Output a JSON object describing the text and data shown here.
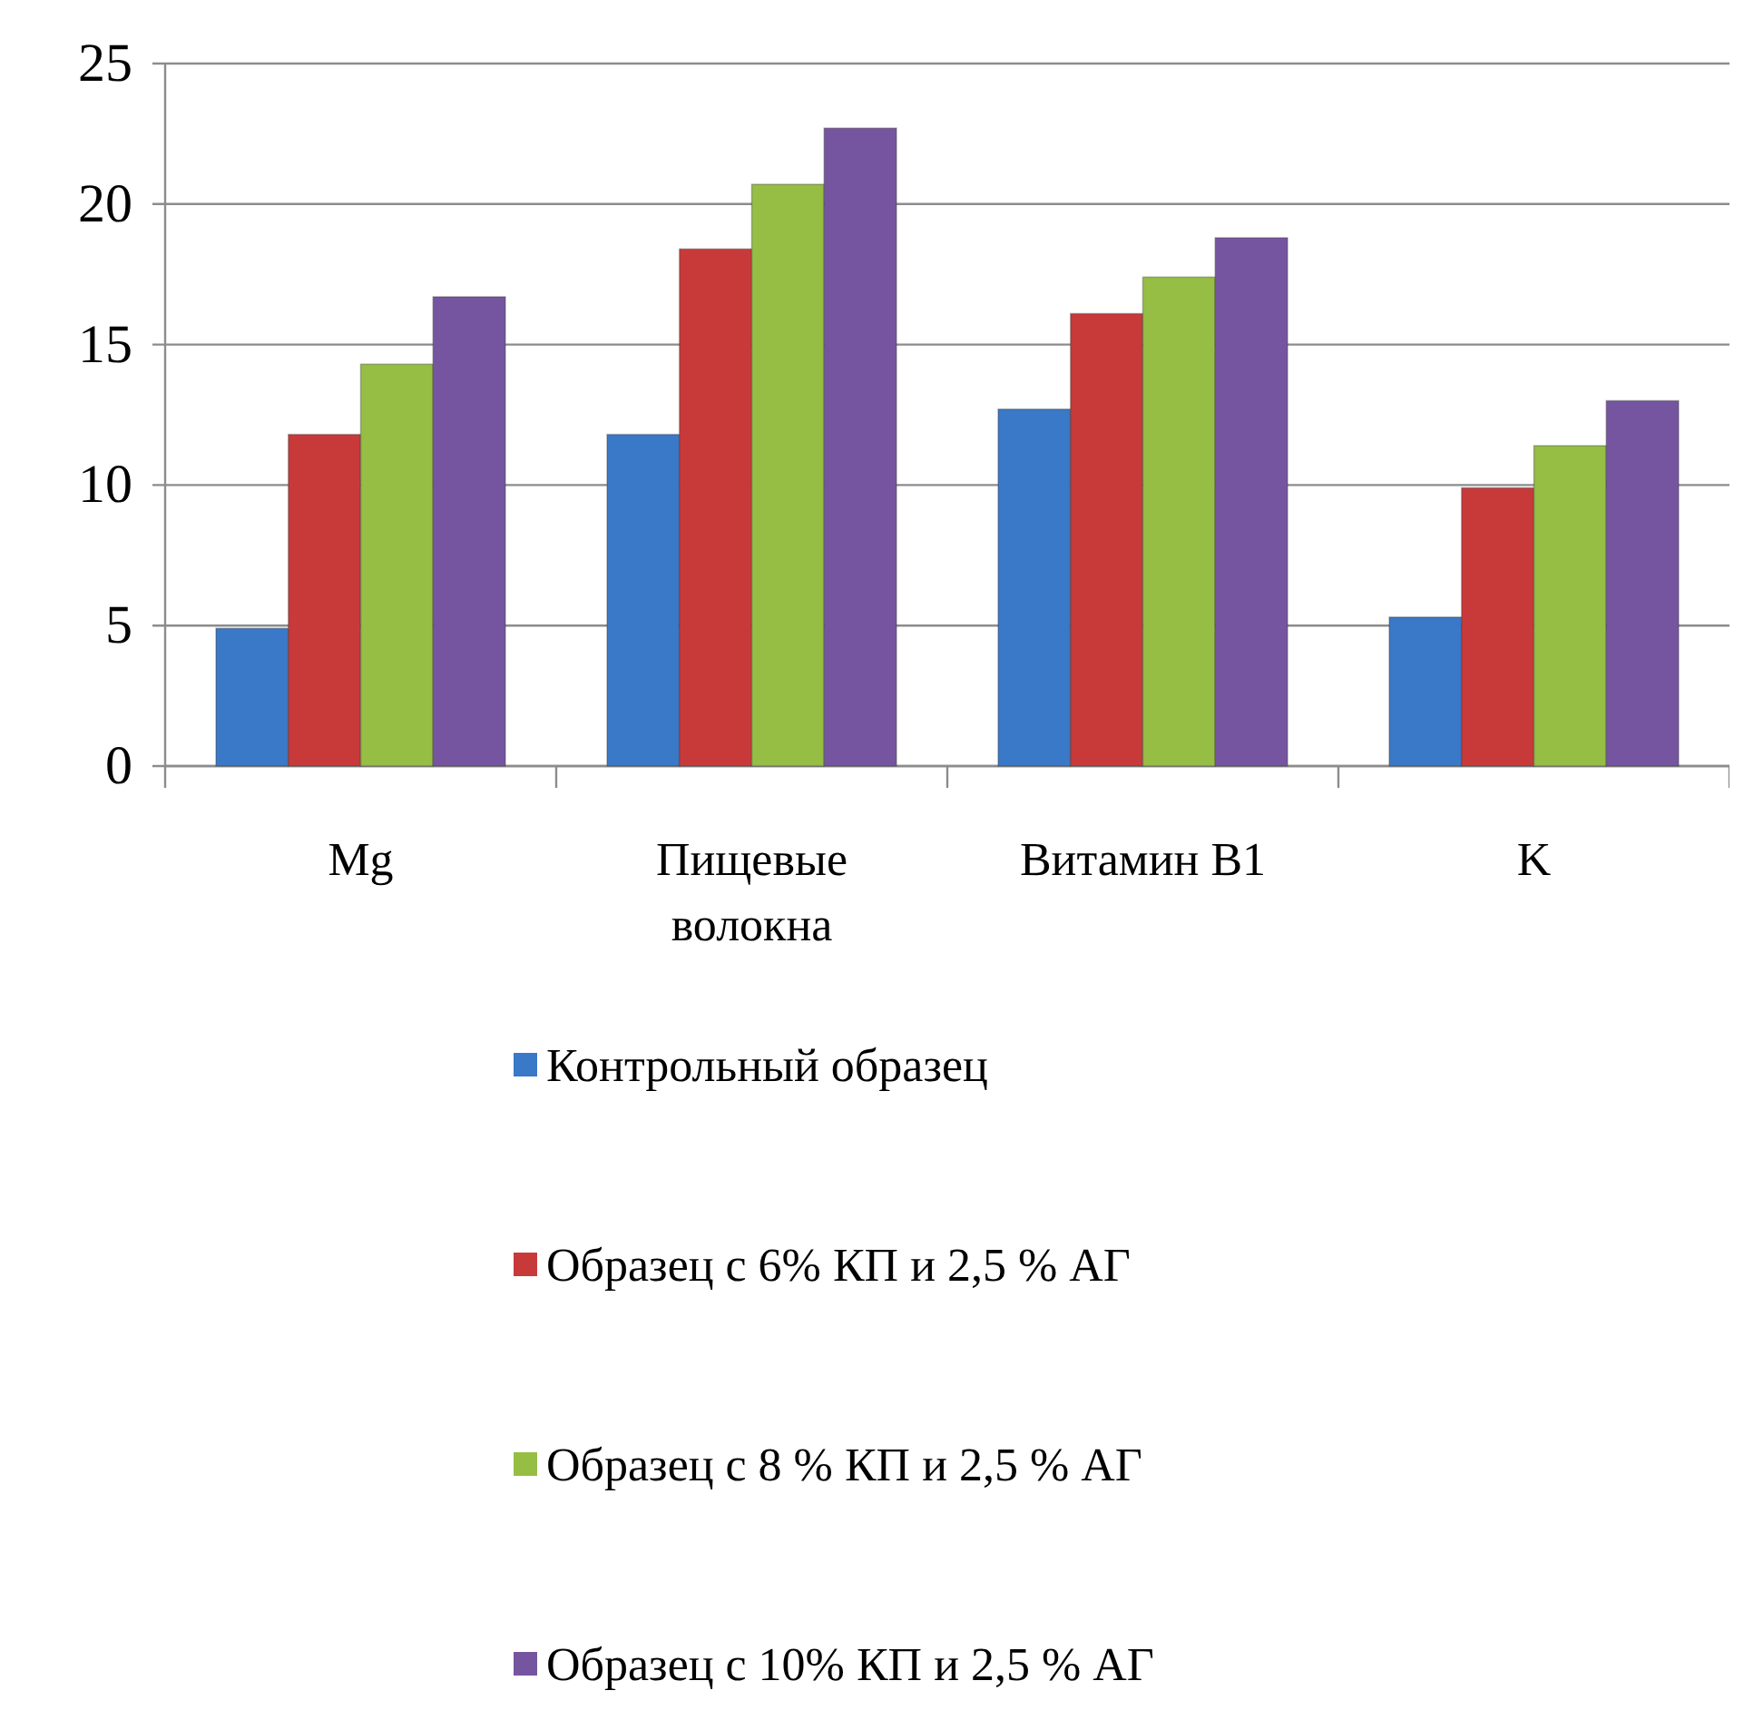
{
  "chart_data": {
    "type": "bar",
    "categories": [
      "Mg",
      "Пищевые волокна",
      "Витамин B1",
      "K"
    ],
    "series": [
      {
        "name": "Контрольный образец",
        "color": "#3a78c8",
        "values": [
          4.9,
          11.8,
          12.7,
          5.3
        ]
      },
      {
        "name": "Образец с 6% КП и 2,5 % АГ",
        "color": "#c83a3a",
        "values": [
          11.8,
          18.4,
          16.1,
          9.9
        ]
      },
      {
        "name": "Образец с 8 % КП и 2,5 % АГ",
        "color": "#96be44",
        "values": [
          14.3,
          20.7,
          17.4,
          11.4
        ]
      },
      {
        "name": "Образец с 10% КП и 2,5 % АГ",
        "color": "#7655a0",
        "values": [
          16.7,
          22.7,
          18.8,
          13.0
        ]
      }
    ],
    "ylim": [
      0,
      25
    ],
    "yticks": [
      0,
      5,
      10,
      15,
      20,
      25
    ],
    "grid": "y",
    "legend": "bottom"
  }
}
